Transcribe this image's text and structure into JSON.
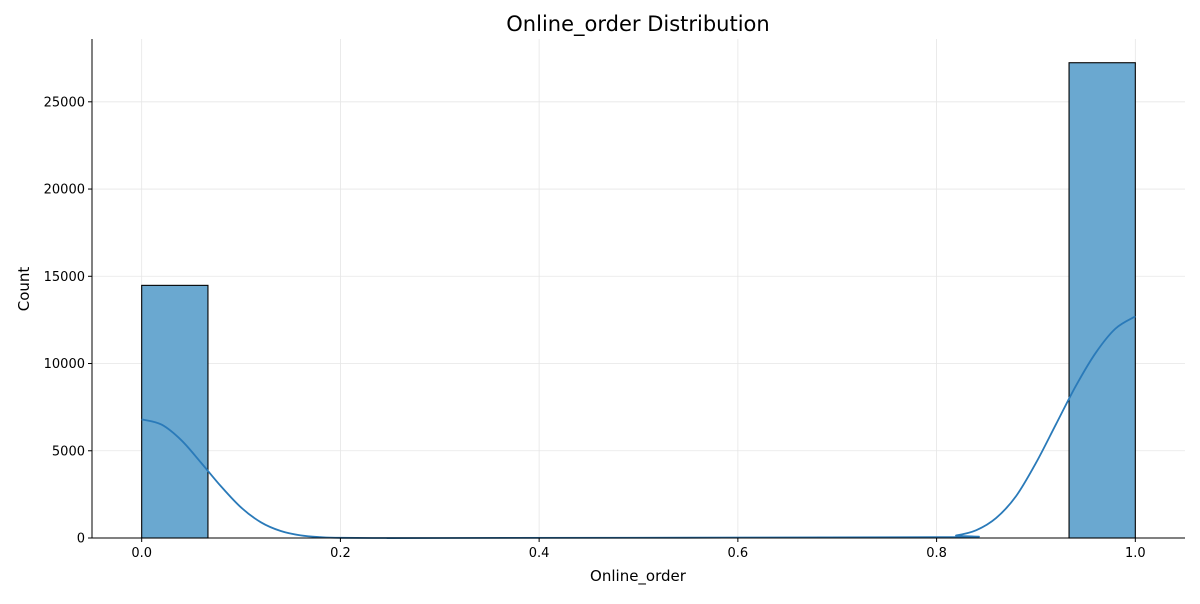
{
  "chart_data": {
    "type": "histogram",
    "title": "Online_order Distribution",
    "xlabel": "Online_order",
    "ylabel": "Count",
    "xlim": [
      -0.05,
      1.05
    ],
    "ylim": [
      0,
      28600
    ],
    "xticks": [
      0.0,
      0.2,
      0.4,
      0.6,
      0.8,
      1.0
    ],
    "xtick_labels": [
      "0.0",
      "0.2",
      "0.4",
      "0.6",
      "0.8",
      "1.0"
    ],
    "yticks": [
      0,
      5000,
      10000,
      15000,
      20000,
      25000
    ],
    "ytick_labels": [
      "0",
      "5000",
      "10000",
      "15000",
      "20000",
      "25000"
    ],
    "grid": true,
    "bars": [
      {
        "x0": 0.0,
        "x1": 0.0667,
        "value": 14480
      },
      {
        "x0": 0.9333,
        "x1": 1.0,
        "value": 27240
      }
    ],
    "kde": {
      "x": [
        0.0,
        0.02,
        0.04,
        0.06,
        0.08,
        0.1,
        0.12,
        0.14,
        0.16,
        0.18,
        0.2,
        0.25,
        0.3,
        0.8,
        0.82,
        0.84,
        0.86,
        0.88,
        0.9,
        0.92,
        0.94,
        0.96,
        0.98,
        1.0
      ],
      "y": [
        6800,
        6500,
        5600,
        4300,
        2950,
        1750,
        900,
        400,
        150,
        50,
        10,
        0,
        0,
        50,
        150,
        450,
        1150,
        2400,
        4300,
        6500,
        8700,
        10600,
        12000,
        12700
      ]
    },
    "colors": {
      "bar_fill": "#6aa8d0",
      "bar_edge": "#000000",
      "kde_line": "#2a7ab9",
      "grid": "#e6e6e6"
    }
  }
}
